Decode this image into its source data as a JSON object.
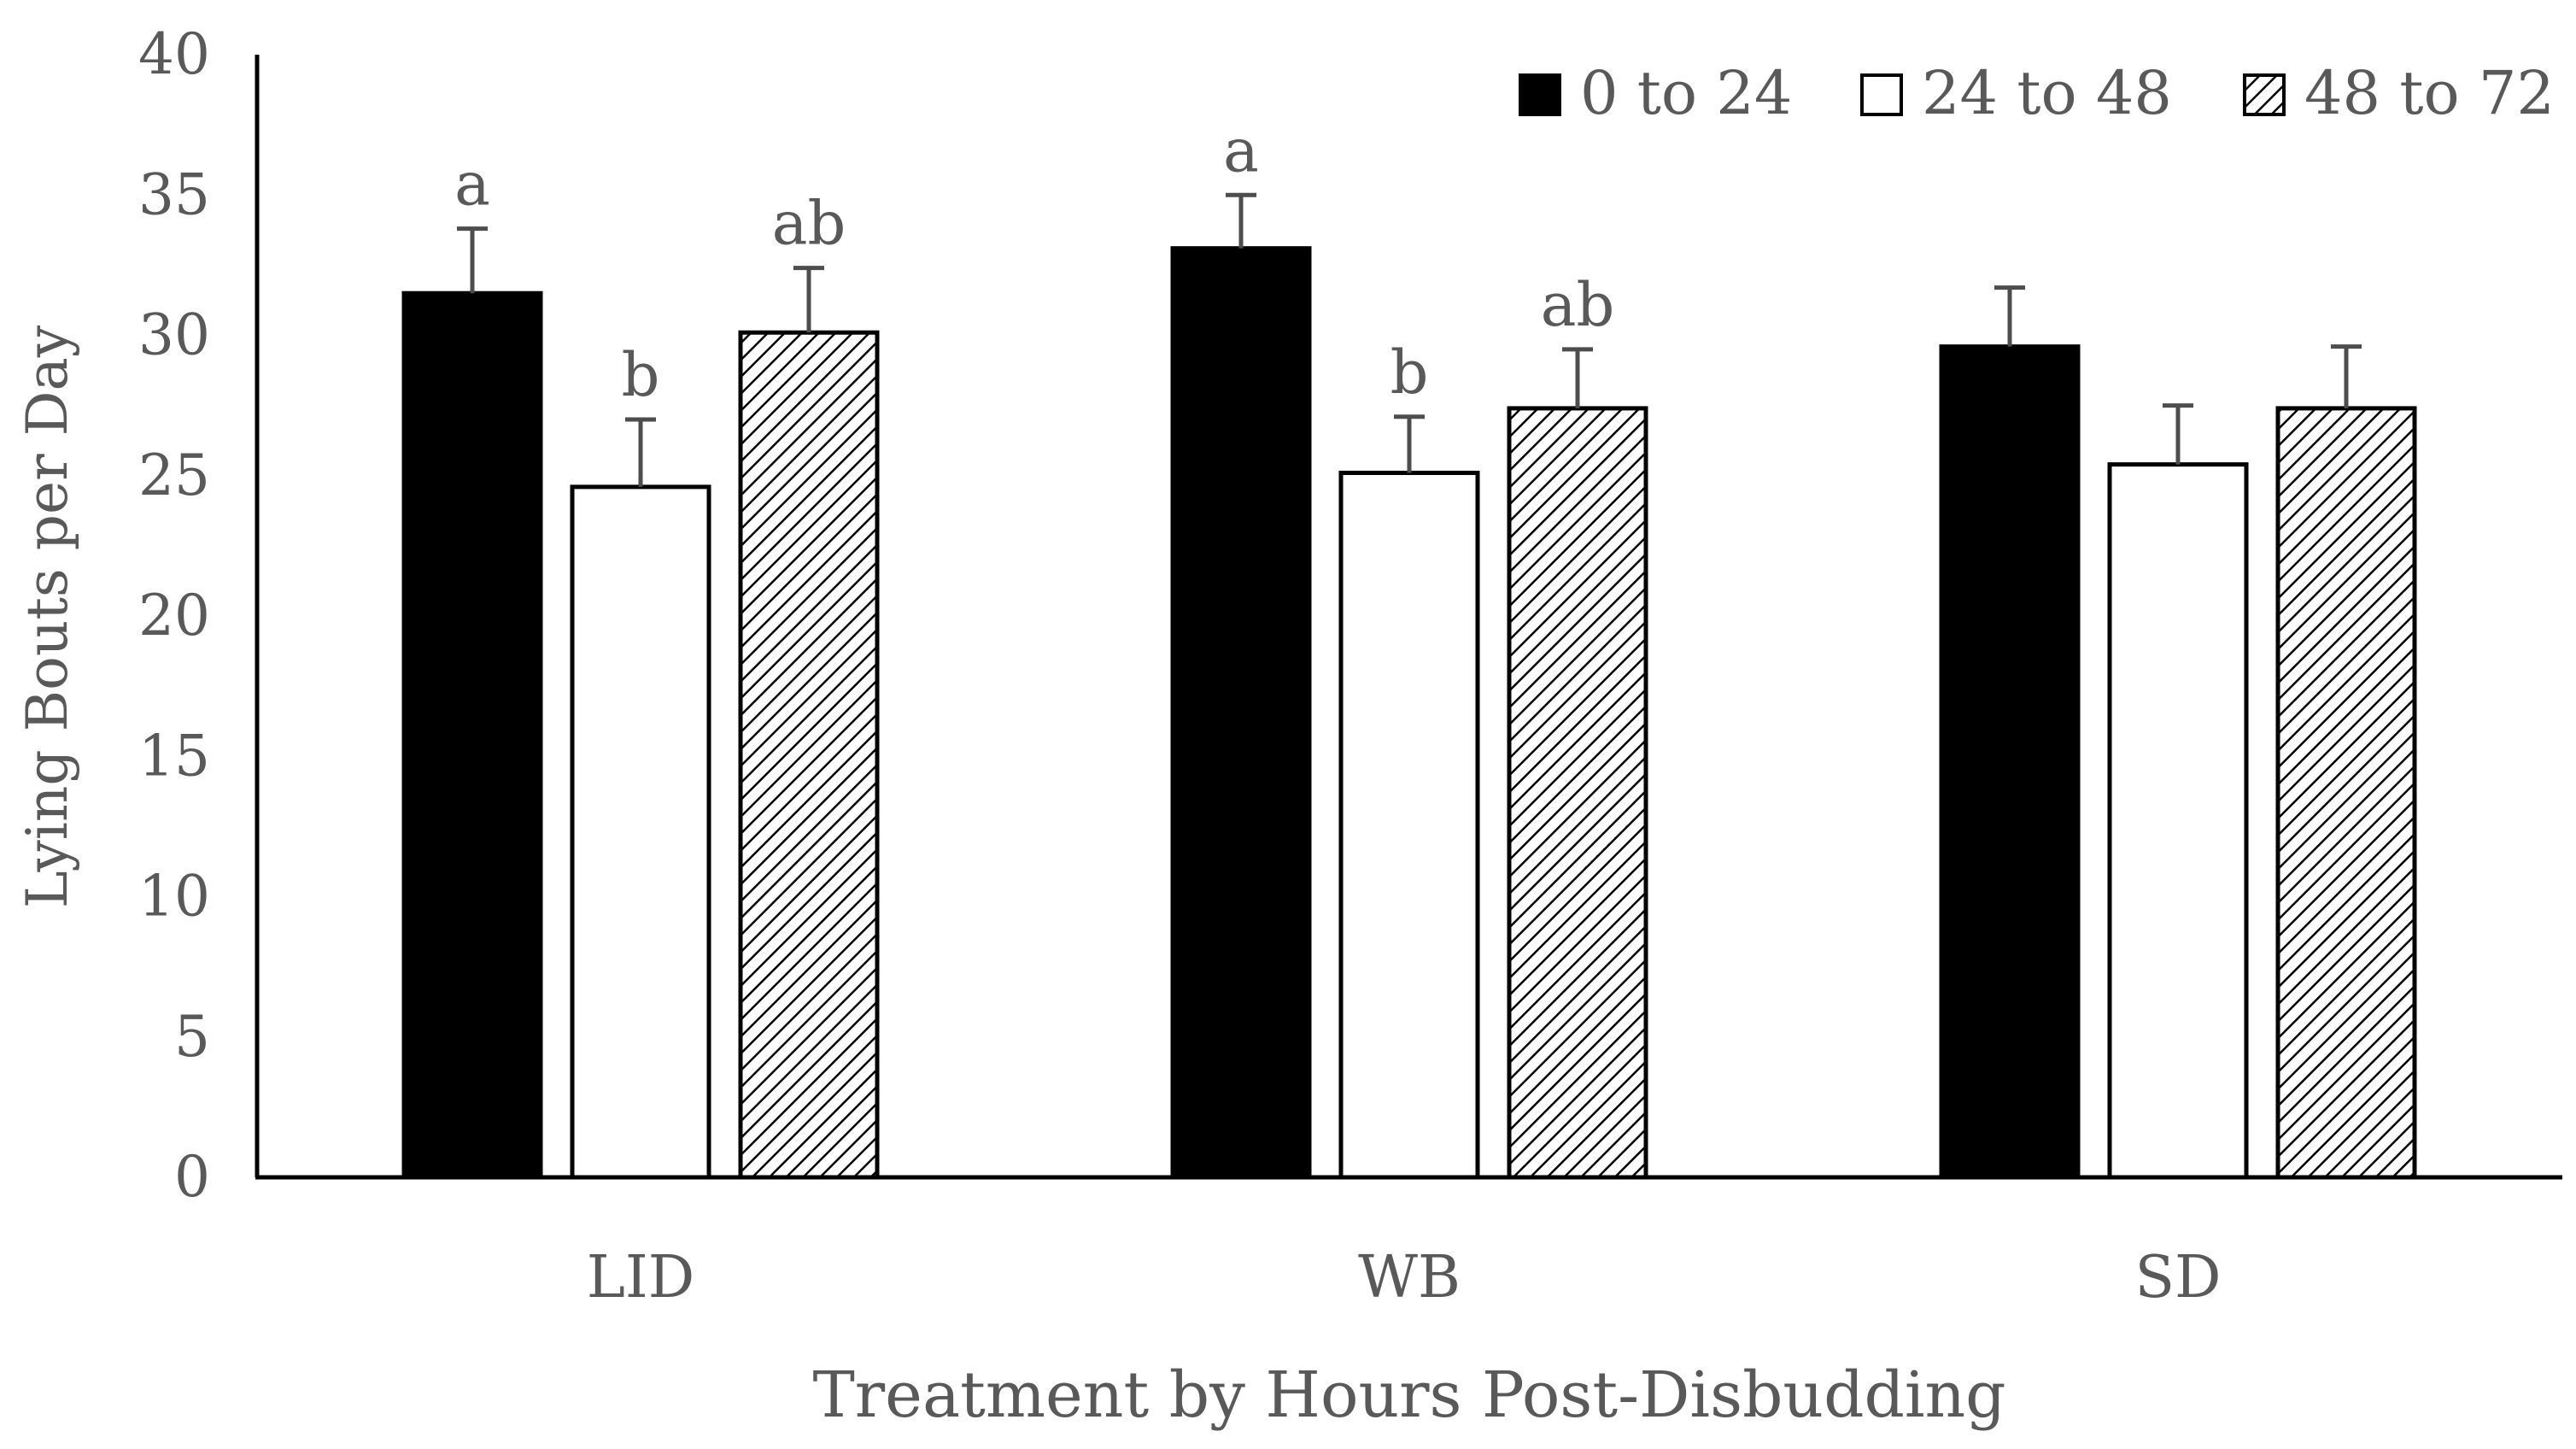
{
  "chart_data": {
    "type": "bar",
    "title": "",
    "xlabel": "Treatment by Hours Post-Disbudding",
    "ylabel": "Lying Bouts per Day",
    "ylim": [
      0,
      40
    ],
    "yticks": [
      0,
      5,
      10,
      15,
      20,
      25,
      30,
      35,
      40
    ],
    "categories": [
      "LID",
      "WB",
      "SD"
    ],
    "legend_position": "top-right",
    "grid": false,
    "series": [
      {
        "name": "0 to 24",
        "fill": "solid",
        "color": "#000000",
        "values": [
          31.5,
          33.1,
          29.6
        ],
        "errors": [
          2.3,
          1.9,
          2.1
        ],
        "labels": [
          "a",
          "a",
          ""
        ]
      },
      {
        "name": "24 to 48",
        "fill": "open",
        "color": "#ffffff",
        "values": [
          24.6,
          25.1,
          25.4
        ],
        "errors": [
          2.4,
          2.0,
          2.1
        ],
        "labels": [
          "b",
          "b",
          ""
        ]
      },
      {
        "name": "48 to 72",
        "fill": "hatched",
        "color": "#ffffff",
        "values": [
          30.1,
          27.4,
          27.4
        ],
        "errors": [
          2.3,
          2.1,
          2.2
        ],
        "labels": [
          "ab",
          "ab",
          ""
        ]
      }
    ]
  },
  "colors": {
    "axis": "#000000",
    "text": "#595959",
    "error_bar": "#4d4d4d"
  }
}
